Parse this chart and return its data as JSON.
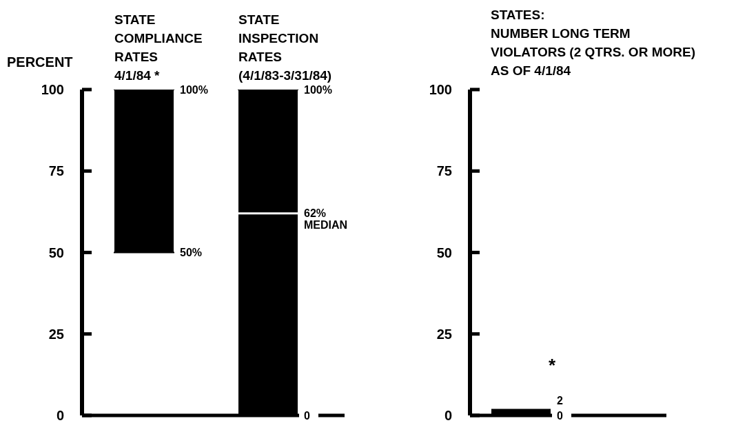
{
  "chart_data": [
    {
      "type": "box",
      "ylabel": "PERCENT",
      "categories": [
        "STATE\nCOMPLIANCE\nRATES\n4/1/84 *",
        "STATE\nINSPECTION\nRATES\n(4/1/83-3/31/84)"
      ],
      "color": "#000000",
      "ylim": [
        0,
        100
      ],
      "yticks": [
        0,
        25,
        50,
        75,
        100
      ],
      "boxes": [
        {
          "low": 50,
          "q1": 50,
          "median": null,
          "q3": 100,
          "high": 100
        },
        {
          "low": 0,
          "q1": 0,
          "median": 62,
          "q3": 100,
          "high": 100
        }
      ],
      "annotations": [
        {
          "text": "100%",
          "x": "STATE\nCOMPLIANCE\nRATES\n4/1/84 *",
          "y": 100
        },
        {
          "text": "50%",
          "x": "STATE\nCOMPLIANCE\nRATES\n4/1/84 *",
          "y": 50
        },
        {
          "text": "100%",
          "x": "STATE\nINSPECTION\nRATES\n(4/1/83-3/31/84)",
          "y": 100
        },
        {
          "text": "62%\nMEDIAN",
          "x": "STATE\nINSPECTION\nRATES\n(4/1/83-3/31/84)",
          "y": 62
        },
        {
          "text": "0",
          "x": "STATE\nINSPECTION\nRATES\n(4/1/83-3/31/84)",
          "y": 0
        }
      ]
    },
    {
      "type": "bar",
      "title": "STATES:\nNUMBER LONG TERM\nVIOLATORS (2 QTRS. OR MORE)\nAS OF 4/1/84",
      "categories": [
        null
      ],
      "values": [
        2
      ],
      "base": [
        0
      ],
      "value_labels": [
        "2"
      ],
      "color": "#000000",
      "ylim": [
        0,
        100
      ],
      "yticks": [
        0,
        25,
        50,
        75,
        100
      ],
      "annotations": [
        "0",
        "*"
      ]
    }
  ]
}
